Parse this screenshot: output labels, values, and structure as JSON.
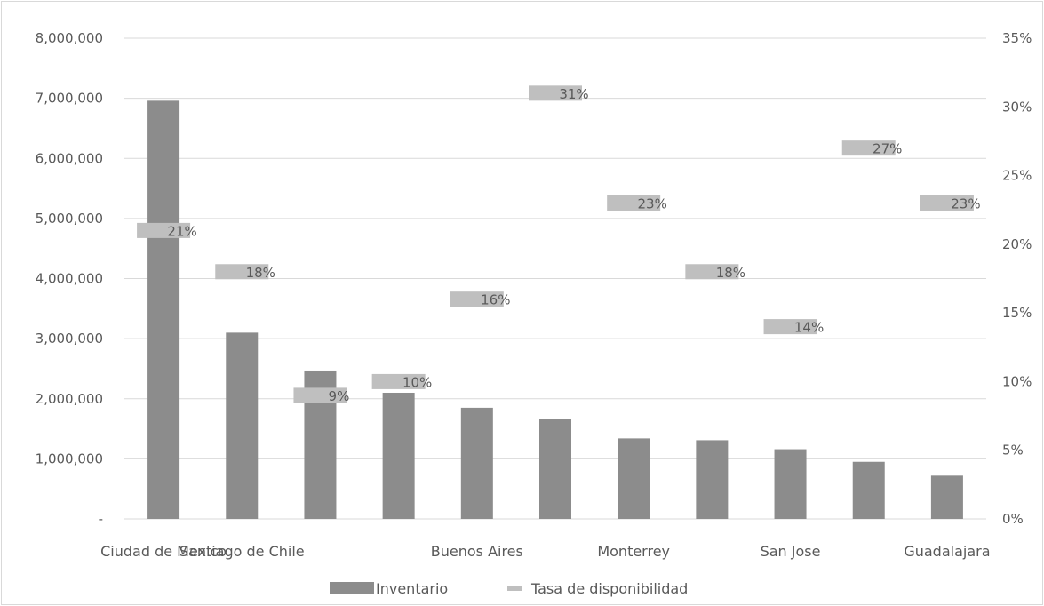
{
  "chart_data": {
    "type": "bar",
    "title": "",
    "xlabel": "",
    "ylabel": "",
    "categories": [
      "Ciudad de Mexico",
      "Santiago de Chile",
      "",
      "",
      "Buenos Aires",
      "",
      "Monterrey",
      "",
      "San Jose",
      "",
      "Guadalajara"
    ],
    "ylim": [
      0,
      8000000
    ],
    "y2lim": [
      0,
      0.35
    ],
    "y_ticks": [
      "-",
      "1,000,000",
      "2,000,000",
      "3,000,000",
      "4,000,000",
      "5,000,000",
      "6,000,000",
      "7,000,000",
      "8,000,000"
    ],
    "y2_ticks": [
      "0%",
      "5%",
      "10%",
      "15%",
      "20%",
      "25%",
      "30%",
      "35%"
    ],
    "grid": true,
    "legend_position": "bottom",
    "series": [
      {
        "name": "Inventario",
        "kind": "bar",
        "axis": "left",
        "color": "#8c8c8c",
        "values": [
          6960000,
          3100000,
          2470000,
          2100000,
          1850000,
          1670000,
          1340000,
          1310000,
          1160000,
          950000,
          720000
        ]
      },
      {
        "name": "Tasa de disponibilidad",
        "kind": "marker",
        "axis": "right",
        "color": "#bfbfbf",
        "values": [
          0.21,
          0.18,
          0.09,
          0.1,
          0.16,
          0.31,
          0.23,
          0.18,
          0.14,
          0.27,
          0.23
        ],
        "labels": [
          "21%",
          "18%",
          "9%",
          "10%",
          "16%",
          "31%",
          "23%",
          "18%",
          "14%",
          "27%",
          "23%"
        ]
      }
    ]
  }
}
